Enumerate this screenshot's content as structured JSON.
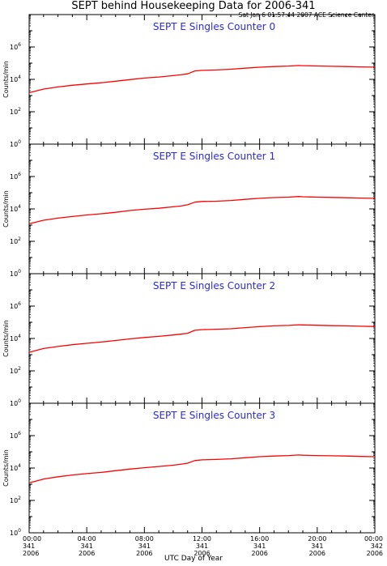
{
  "header": {
    "title": "SEPT behind Housekeeping Data for 2006-341",
    "timestamp": "Sat Jan  6 01:57:44 2007 ACE Science Center"
  },
  "footer": {
    "xlabel": "UTC Day of Year"
  },
  "colors": {
    "series_line": "#ff0000",
    "panel_title": "#2b2bd9",
    "axes": "#000000"
  },
  "chart_data": [
    {
      "type": "line",
      "title": "SEPT E Singles Counter 0",
      "ylabel": "Counts/min",
      "yscale": "log",
      "ylim": [
        1,
        100000000.0
      ],
      "xlim": [
        0,
        24
      ],
      "y_tick_labels": [
        "10^0",
        "10^2",
        "10^4",
        "10^6"
      ],
      "series": [
        {
          "x": [
            0,
            1,
            2,
            3,
            4,
            5,
            6,
            7,
            8,
            9,
            10,
            10.5,
            11,
            11.5,
            12,
            13,
            14,
            15,
            16,
            17,
            18,
            18.7,
            19,
            20,
            21,
            22,
            23,
            24
          ],
          "y": [
            1500,
            2500,
            3400,
            4300,
            5200,
            6200,
            7700,
            9700,
            12000,
            14000,
            17000,
            19000,
            22000,
            33000,
            36000,
            38000,
            42000,
            49000,
            56000,
            62000,
            66000,
            72000,
            70000,
            67000,
            64000,
            62000,
            59000,
            57000
          ]
        }
      ]
    },
    {
      "type": "line",
      "title": "SEPT E Singles Counter 1",
      "ylabel": "Counts/min",
      "yscale": "log",
      "ylim": [
        1,
        100000000.0
      ],
      "xlim": [
        0,
        24
      ],
      "y_tick_labels": [
        "10^0",
        "10^2",
        "10^4",
        "10^6"
      ],
      "series": [
        {
          "x": [
            0,
            1,
            2,
            3,
            4,
            5,
            6,
            7,
            8,
            9,
            10,
            10.5,
            11,
            11.5,
            12,
            13,
            14,
            15,
            16,
            17,
            18,
            18.7,
            19,
            20,
            21,
            22,
            23,
            24
          ],
          "y": [
            1200,
            2000,
            2700,
            3400,
            4200,
            5000,
            6200,
            7900,
            9500,
            11000,
            13500,
            15000,
            18000,
            26000,
            29000,
            30000,
            33000,
            39000,
            45000,
            50000,
            53000,
            58000,
            56000,
            53000,
            51000,
            49000,
            47000,
            45000
          ]
        }
      ]
    },
    {
      "type": "line",
      "title": "SEPT E Singles Counter 2",
      "ylabel": "Counts/min",
      "yscale": "log",
      "ylim": [
        1,
        100000000.0
      ],
      "xlim": [
        0,
        24
      ],
      "y_tick_labels": [
        "10^0",
        "10^2",
        "10^4",
        "10^6"
      ],
      "series": [
        {
          "x": [
            0,
            1,
            2,
            3,
            4,
            5,
            6,
            7,
            8,
            9,
            10,
            10.5,
            11,
            11.5,
            12,
            13,
            14,
            15,
            16,
            17,
            18,
            18.7,
            19,
            20,
            21,
            22,
            23,
            24
          ],
          "y": [
            1400,
            2400,
            3200,
            4100,
            5000,
            6000,
            7500,
            9400,
            11500,
            13500,
            16500,
            18500,
            21000,
            32000,
            35000,
            37000,
            40000,
            47000,
            54000,
            60000,
            64000,
            70000,
            68000,
            65000,
            62000,
            60000,
            57000,
            55000
          ]
        }
      ]
    },
    {
      "type": "line",
      "title": "SEPT E Singles Counter 3",
      "ylabel": "Counts/min",
      "yscale": "log",
      "ylim": [
        1,
        100000000.0
      ],
      "xlim": [
        0,
        24
      ],
      "y_tick_labels": [
        "10^0",
        "10^2",
        "10^4",
        "10^6"
      ],
      "series": [
        {
          "x": [
            0,
            1,
            2,
            3,
            4,
            5,
            6,
            7,
            8,
            9,
            10,
            10.5,
            11,
            11.5,
            12,
            13,
            14,
            15,
            16,
            17,
            18,
            18.7,
            19,
            20,
            21,
            22,
            23,
            24
          ],
          "y": [
            1200,
            2100,
            2900,
            3700,
            4500,
            5400,
            6800,
            8600,
            10500,
            12500,
            15000,
            17000,
            20000,
            29000,
            32000,
            34000,
            37000,
            43000,
            50000,
            55000,
            59000,
            64000,
            62000,
            59000,
            57000,
            55000,
            52000,
            50000
          ]
        }
      ]
    }
  ],
  "x_axis": {
    "ticks": [
      {
        "x": 0,
        "time": "00:00",
        "doy": "341",
        "year": "2006"
      },
      {
        "x": 4,
        "time": "04:00",
        "doy": "341",
        "year": "2006"
      },
      {
        "x": 8,
        "time": "08:00",
        "doy": "341",
        "year": "2006"
      },
      {
        "x": 12,
        "time": "12:00",
        "doy": "341",
        "year": "2006"
      },
      {
        "x": 16,
        "time": "16:00",
        "doy": "341",
        "year": "2006"
      },
      {
        "x": 20,
        "time": "20:00",
        "doy": "341",
        "year": "2006"
      },
      {
        "x": 24,
        "time": "00:00",
        "doy": "342",
        "year": "2006"
      }
    ]
  }
}
